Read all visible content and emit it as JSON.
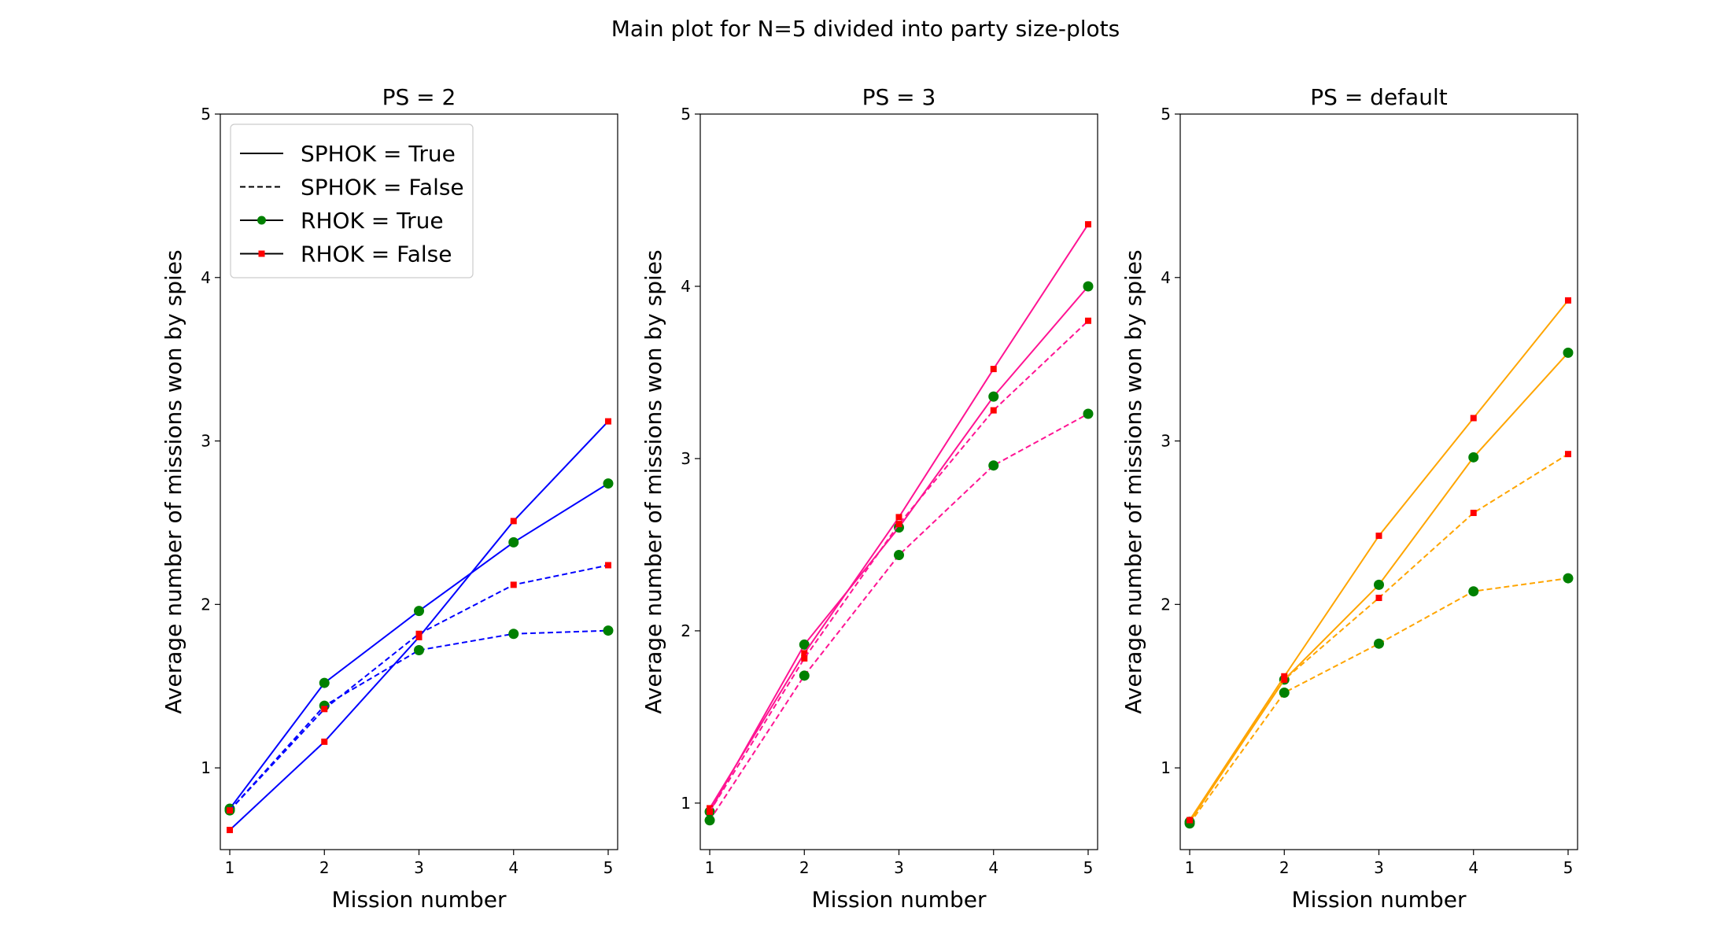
{
  "figure": {
    "title": "Main plot for N=5 divided into party size-plots"
  },
  "chart_data": [
    {
      "type": "line",
      "title": "PS = 2",
      "xlabel": "Mission number",
      "ylabel": "Average number of missions won by spies",
      "color": "#0000ff",
      "x": [
        1,
        2,
        3,
        4,
        5
      ],
      "xticks": [
        "1",
        "2",
        "3",
        "4",
        "5"
      ],
      "yticks": [
        "1",
        "2",
        "3",
        "4",
        "5"
      ],
      "xlim": [
        0.9,
        5.1
      ],
      "ylim": [
        0.5,
        5.0
      ],
      "series": [
        {
          "sphok": true,
          "rhok": true,
          "values": [
            0.75,
            1.52,
            1.96,
            2.38,
            2.74
          ]
        },
        {
          "sphok": true,
          "rhok": false,
          "values": [
            0.62,
            1.16,
            1.8,
            2.51,
            3.12
          ]
        },
        {
          "sphok": false,
          "rhok": true,
          "values": [
            0.74,
            1.38,
            1.72,
            1.82,
            1.84
          ]
        },
        {
          "sphok": false,
          "rhok": false,
          "values": [
            0.74,
            1.36,
            1.82,
            2.12,
            2.24
          ]
        }
      ],
      "legend": {
        "location": "upper-left",
        "entries": [
          {
            "label": "SPHOK = True",
            "style": "solid"
          },
          {
            "label": "SPHOK = False",
            "style": "dashed"
          },
          {
            "label": "RHOK = True",
            "style": "circle-marker",
            "color": "#008000"
          },
          {
            "label": "RHOK = False",
            "style": "square-marker",
            "color": "#ff0000"
          }
        ]
      }
    },
    {
      "type": "line",
      "title": "PS = 3",
      "xlabel": "Mission number",
      "ylabel": "Average number of missions won by spies",
      "color": "#ff1493",
      "x": [
        1,
        2,
        3,
        4,
        5
      ],
      "xticks": [
        "1",
        "2",
        "3",
        "4",
        "5"
      ],
      "yticks": [
        "1",
        "2",
        "3",
        "4",
        "5"
      ],
      "xlim": [
        0.9,
        5.1
      ],
      "ylim": [
        0.73,
        5.0
      ],
      "series": [
        {
          "sphok": true,
          "rhok": true,
          "values": [
            0.95,
            1.92,
            2.6,
            3.36,
            4.0
          ]
        },
        {
          "sphok": true,
          "rhok": false,
          "values": [
            0.97,
            1.87,
            2.66,
            3.52,
            4.36
          ]
        },
        {
          "sphok": false,
          "rhok": true,
          "values": [
            0.9,
            1.74,
            2.44,
            2.96,
            3.26
          ]
        },
        {
          "sphok": false,
          "rhok": false,
          "values": [
            0.95,
            1.84,
            2.62,
            3.28,
            3.8
          ]
        }
      ]
    },
    {
      "type": "line",
      "title": "PS = default",
      "xlabel": "Mission number",
      "ylabel": "Average number of missions won by spies",
      "color": "#ffa500",
      "x": [
        1,
        2,
        3,
        4,
        5
      ],
      "xticks": [
        "1",
        "2",
        "3",
        "4",
        "5"
      ],
      "yticks": [
        "1",
        "2",
        "3",
        "4",
        "5"
      ],
      "xlim": [
        0.9,
        5.1
      ],
      "ylim": [
        0.5,
        5.0
      ],
      "series": [
        {
          "sphok": true,
          "rhok": true,
          "values": [
            0.67,
            1.54,
            2.12,
            2.9,
            3.54
          ]
        },
        {
          "sphok": true,
          "rhok": false,
          "values": [
            0.68,
            1.56,
            2.42,
            3.14,
            3.86
          ]
        },
        {
          "sphok": false,
          "rhok": true,
          "values": [
            0.66,
            1.46,
            1.76,
            2.08,
            2.16
          ]
        },
        {
          "sphok": false,
          "rhok": false,
          "values": [
            0.68,
            1.54,
            2.04,
            2.56,
            2.92
          ]
        }
      ]
    }
  ]
}
